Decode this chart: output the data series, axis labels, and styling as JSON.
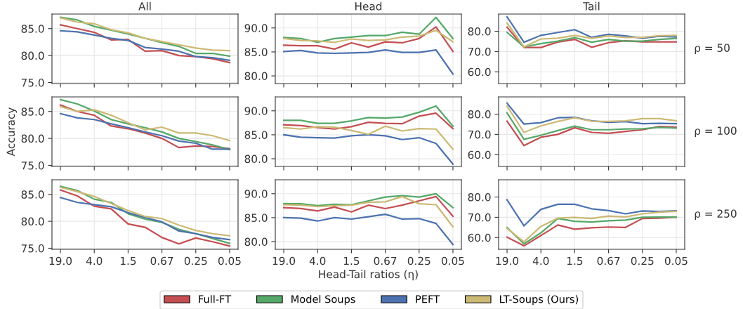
{
  "chart_data": [
    {
      "type": "line",
      "title": "All",
      "categories": [
        "19.0",
        null,
        "4.0",
        null,
        "1.5",
        null,
        "0.67",
        null,
        "0.25",
        null,
        "0.05"
      ],
      "ylim": [
        74.8,
        87.7
      ],
      "yticks": [
        {
          "value": 75,
          "label": "75.0"
        },
        {
          "value": 80,
          "label": "80.0"
        },
        {
          "value": 85,
          "label": "85.0"
        }
      ],
      "grid": true,
      "tick_labels": "y",
      "legend": false,
      "series": [
        {
          "color": "#c44e52",
          "values": [
            85.7,
            85.0,
            84.3,
            82.9,
            83.0,
            80.8,
            80.9,
            80.0,
            79.8,
            79.4,
            78.7
          ]
        },
        {
          "color": "#55a868",
          "values": [
            87.1,
            86.6,
            85.4,
            84.7,
            84.0,
            83.2,
            82.4,
            81.7,
            80.4,
            80.4,
            79.9
          ]
        },
        {
          "color": "#4c72b0",
          "values": [
            84.6,
            84.4,
            83.8,
            83.2,
            82.8,
            81.5,
            81.2,
            80.8,
            79.8,
            79.6,
            79.1
          ]
        },
        {
          "color": "#ccb974",
          "values": [
            87.0,
            86.2,
            85.9,
            84.8,
            84.2,
            83.2,
            82.6,
            82.0,
            81.4,
            81.0,
            80.9
          ]
        }
      ]
    },
    {
      "type": "line",
      "title": "Head",
      "categories": [
        "19.0",
        null,
        "4.0",
        null,
        "1.5",
        null,
        "0.67",
        null,
        "0.25",
        null,
        "0.05"
      ],
      "ylim": [
        78.4,
        92.9
      ],
      "yticks": [
        {
          "value": 80,
          "label": "80.0"
        },
        {
          "value": 85,
          "label": "85.0"
        },
        {
          "value": 90,
          "label": "90.0"
        }
      ],
      "grid": true,
      "tick_labels": "y",
      "legend": false,
      "series": [
        {
          "color": "#c44e52",
          "values": [
            86.4,
            86.3,
            86.3,
            85.6,
            86.9,
            86.0,
            87.1,
            86.9,
            87.8,
            90.2,
            85.1
          ]
        },
        {
          "color": "#55a868",
          "values": [
            88.0,
            87.8,
            87.0,
            87.8,
            88.1,
            88.4,
            88.4,
            89.1,
            88.7,
            92.2,
            87.8
          ]
        },
        {
          "color": "#4c72b0",
          "values": [
            85.1,
            85.3,
            84.8,
            84.7,
            84.8,
            84.9,
            85.4,
            84.9,
            84.9,
            85.4,
            80.4
          ]
        },
        {
          "color": "#ccb974",
          "values": [
            87.8,
            87.4,
            87.3,
            87.0,
            87.7,
            87.4,
            87.5,
            88.1,
            88.3,
            89.5,
            87.1
          ]
        }
      ]
    },
    {
      "type": "line",
      "title": "Tail",
      "categories": [
        "19.0",
        null,
        "4.0",
        null,
        "1.5",
        null,
        "0.67",
        null,
        "0.25",
        null,
        "0.05"
      ],
      "ylim": [
        54.2,
        88.5
      ],
      "yticks": [
        {
          "value": 60,
          "label": "60.0"
        },
        {
          "value": 70,
          "label": "70.0"
        },
        {
          "value": 80,
          "label": "80.0"
        }
      ],
      "grid": true,
      "tick_labels": "y",
      "legend": false,
      "annotations": [
        "ρ = 50"
      ],
      "series": [
        {
          "color": "#c44e52",
          "values": [
            82.0,
            72.0,
            72.0,
            74.7,
            76.0,
            72.1,
            74.4,
            75.3,
            74.8,
            74.8,
            74.8
          ]
        },
        {
          "color": "#55a868",
          "values": [
            79.5,
            72.3,
            73.9,
            75.1,
            76.9,
            74.6,
            76.0,
            75.1,
            75.1,
            76.0,
            76.5
          ]
        },
        {
          "color": "#4c72b0",
          "values": [
            87.1,
            74.6,
            78.0,
            79.4,
            80.8,
            77.0,
            78.5,
            77.7,
            76.6,
            77.5,
            77.2
          ]
        },
        {
          "color": "#ccb974",
          "values": [
            84.1,
            72.3,
            76.2,
            76.6,
            78.0,
            76.5,
            77.7,
            76.9,
            77.0,
            77.8,
            78.0
          ]
        }
      ]
    },
    {
      "type": "line",
      "ylabel": "Accuracy",
      "categories": [
        "19.0",
        null,
        "4.0",
        null,
        "1.5",
        null,
        "0.67",
        null,
        "0.25",
        null,
        "0.05"
      ],
      "ylim": [
        74.8,
        87.7
      ],
      "yticks": [
        {
          "value": 75,
          "label": "75.0"
        },
        {
          "value": 80,
          "label": "80.0"
        },
        {
          "value": 85,
          "label": "85.0"
        }
      ],
      "grid": true,
      "tick_labels": "y",
      "legend": false,
      "series": [
        {
          "color": "#c44e52",
          "values": [
            86.2,
            85.0,
            84.3,
            82.3,
            81.8,
            81.0,
            80.0,
            78.3,
            78.6,
            78.5,
            78.1
          ]
        },
        {
          "color": "#55a868",
          "values": [
            87.2,
            86.4,
            85.1,
            83.5,
            82.7,
            82.0,
            81.2,
            80.0,
            79.4,
            78.8,
            77.9
          ]
        },
        {
          "color": "#4c72b0",
          "values": [
            84.6,
            83.8,
            83.5,
            82.7,
            82.0,
            81.2,
            80.5,
            79.5,
            79.1,
            78.0,
            78.0
          ]
        },
        {
          "color": "#ccb974",
          "values": [
            85.9,
            85.0,
            85.3,
            84.3,
            82.9,
            81.6,
            82.1,
            81.0,
            81.0,
            80.5,
            79.6
          ]
        }
      ]
    },
    {
      "type": "line",
      "categories": [
        "19.0",
        null,
        "4.0",
        null,
        "1.5",
        null,
        "0.67",
        null,
        "0.25",
        null,
        "0.05"
      ],
      "ylim": [
        78.4,
        92.9
      ],
      "yticks": [
        {
          "value": 80,
          "label": "80.0"
        },
        {
          "value": 85,
          "label": "85.0"
        },
        {
          "value": 90,
          "label": "90.0"
        }
      ],
      "grid": true,
      "tick_labels": "y",
      "legend": false,
      "series": [
        {
          "color": "#c44e52",
          "values": [
            87.1,
            86.9,
            86.5,
            86.2,
            86.7,
            87.6,
            87.4,
            87.3,
            88.9,
            89.5,
            86.3
          ]
        },
        {
          "color": "#55a868",
          "values": [
            88.0,
            88.0,
            87.4,
            87.4,
            87.9,
            88.6,
            88.5,
            88.7,
            89.7,
            91.0,
            86.8
          ]
        },
        {
          "color": "#4c72b0",
          "values": [
            85.0,
            84.5,
            84.4,
            84.3,
            84.8,
            85.0,
            84.8,
            84.0,
            84.4,
            83.2,
            78.9
          ]
        },
        {
          "color": "#ccb974",
          "values": [
            86.5,
            86.2,
            86.7,
            86.6,
            85.9,
            85.1,
            86.8,
            85.8,
            86.3,
            86.2,
            82.0
          ]
        }
      ]
    },
    {
      "type": "line",
      "categories": [
        "19.0",
        null,
        "4.0",
        null,
        "1.5",
        null,
        "0.67",
        null,
        "0.25",
        null,
        "0.05"
      ],
      "ylim": [
        54.2,
        88.5
      ],
      "yticks": [
        {
          "value": 60,
          "label": "60.0"
        },
        {
          "value": 70,
          "label": "70.0"
        },
        {
          "value": 80,
          "label": "80.0"
        }
      ],
      "grid": true,
      "tick_labels": "y",
      "legend": false,
      "annotations": [
        "ρ = 100"
      ],
      "series": [
        {
          "color": "#c44e52",
          "values": [
            76.5,
            64.5,
            68.6,
            70.0,
            73.3,
            71.0,
            70.5,
            71.5,
            72.3,
            73.9,
            73.6
          ]
        },
        {
          "color": "#55a868",
          "values": [
            80.6,
            67.6,
            69.6,
            71.9,
            74.1,
            72.3,
            72.3,
            72.7,
            72.8,
            73.5,
            73.1
          ]
        },
        {
          "color": "#4c72b0",
          "values": [
            85.4,
            75.1,
            75.8,
            78.2,
            78.4,
            76.7,
            76.0,
            76.3,
            75.3,
            75.5,
            75.3
          ]
        },
        {
          "color": "#ccb974",
          "values": [
            84.0,
            71.0,
            74.2,
            76.4,
            78.2,
            76.5,
            76.4,
            76.7,
            77.8,
            77.8,
            76.7
          ]
        }
      ]
    },
    {
      "type": "line",
      "categories": [
        "19.0",
        null,
        "4.0",
        null,
        "1.5",
        null,
        "0.67",
        null,
        "0.25",
        null,
        "0.05"
      ],
      "ylim": [
        74.8,
        87.7
      ],
      "yticks": [
        {
          "value": 75,
          "label": "75.0"
        },
        {
          "value": 80,
          "label": "80.0"
        },
        {
          "value": 85,
          "label": "85.0"
        }
      ],
      "grid": true,
      "legend": false,
      "series": [
        {
          "color": "#c44e52",
          "values": [
            85.8,
            84.7,
            82.8,
            82.3,
            79.5,
            78.9,
            77.0,
            75.8,
            76.9,
            76.2,
            75.4
          ]
        },
        {
          "color": "#55a868",
          "values": [
            86.5,
            85.7,
            84.1,
            83.5,
            81.4,
            80.4,
            79.8,
            78.5,
            77.7,
            76.8,
            75.9
          ]
        },
        {
          "color": "#4c72b0",
          "values": [
            84.4,
            83.5,
            83.1,
            82.7,
            81.6,
            80.7,
            79.9,
            78.2,
            77.7,
            77.0,
            76.6
          ]
        },
        {
          "color": "#ccb974",
          "values": [
            86.3,
            85.5,
            84.6,
            83.3,
            82.0,
            80.9,
            80.5,
            79.3,
            78.3,
            77.7,
            77.3
          ]
        }
      ]
    },
    {
      "type": "line",
      "xlabel": "Head-Tail ratios (η)",
      "categories": [
        "19.0",
        null,
        "4.0",
        null,
        "1.5",
        null,
        "0.67",
        null,
        "0.25",
        null,
        "0.05"
      ],
      "ylim": [
        78.4,
        92.9
      ],
      "yticks": [
        {
          "value": 80,
          "label": "80.0"
        },
        {
          "value": 85,
          "label": "85.0"
        },
        {
          "value": 90,
          "label": "90.0"
        }
      ],
      "grid": true,
      "legend": "bottom",
      "series": [
        {
          "name": "Full-FT",
          "color": "#c44e52",
          "values": [
            87.1,
            86.9,
            86.4,
            87.2,
            86.2,
            87.6,
            86.9,
            87.6,
            88.5,
            89.4,
            85.3
          ]
        },
        {
          "name": "Model Soups",
          "color": "#55a868",
          "values": [
            87.9,
            87.9,
            87.5,
            87.8,
            87.7,
            88.5,
            89.3,
            89.6,
            89.3,
            90.0,
            87.1
          ]
        },
        {
          "name": "PEFT",
          "color": "#4c72b0",
          "values": [
            85.0,
            84.9,
            84.3,
            85.0,
            84.7,
            85.2,
            85.7,
            84.7,
            84.8,
            83.8,
            79.4
          ]
        },
        {
          "name": "LT-Soups (Ours)",
          "color": "#ccb974",
          "values": [
            87.7,
            87.6,
            87.3,
            87.5,
            87.6,
            88.2,
            88.3,
            89.4,
            87.9,
            87.7,
            83.1
          ]
        }
      ]
    },
    {
      "type": "line",
      "categories": [
        "19.0",
        null,
        "4.0",
        null,
        "1.5",
        null,
        "0.67",
        null,
        "0.25",
        null,
        "0.05"
      ],
      "ylim": [
        54.2,
        88.5
      ],
      "yticks": [
        {
          "value": 60,
          "label": "60.0"
        },
        {
          "value": 70,
          "label": "70.0"
        },
        {
          "value": 80,
          "label": "80.0"
        }
      ],
      "grid": true,
      "legend": false,
      "annotations": [
        "ρ = 250"
      ],
      "series": [
        {
          "color": "#c44e52",
          "values": [
            60.2,
            55.9,
            61.0,
            66.2,
            64.1,
            64.8,
            65.2,
            65.0,
            69.4,
            69.6,
            70.1
          ]
        },
        {
          "color": "#55a868",
          "values": [
            64.9,
            56.9,
            62.3,
            69.4,
            68.0,
            67.7,
            68.3,
            68.6,
            70.0,
            70.1,
            70.1
          ]
        },
        {
          "color": "#4c72b0",
          "values": [
            78.6,
            65.8,
            73.9,
            76.4,
            76.4,
            74.2,
            73.3,
            71.7,
            73.1,
            72.9,
            73.2
          ]
        },
        {
          "color": "#ccb974",
          "values": [
            64.5,
            57.9,
            65.5,
            69.6,
            69.9,
            69.4,
            70.6,
            70.2,
            71.7,
            72.5,
            72.9
          ]
        }
      ]
    }
  ]
}
